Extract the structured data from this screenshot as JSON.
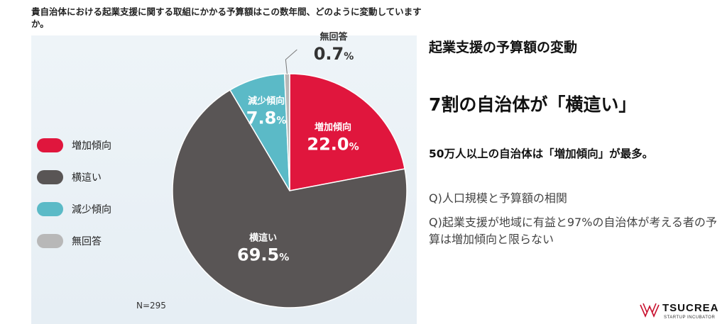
{
  "question": "貴自治体における起業支援に関する取組にかかる予算額はこの数年間、どのように変動していますか。",
  "sample_size": "N=295",
  "legend": [
    {
      "label": "増加傾向",
      "color": "#e0163d"
    },
    {
      "label": "横這い",
      "color": "#595555"
    },
    {
      "label": "減少傾向",
      "color": "#5bbac7"
    },
    {
      "label": "無回答",
      "color": "#b8b8b8"
    }
  ],
  "chart_data": {
    "type": "pie",
    "title": "",
    "slices": [
      {
        "label": "増加傾向",
        "value": 22.0,
        "value_label": "22.0",
        "color": "#e0163d"
      },
      {
        "label": "横這い",
        "value": 69.5,
        "value_label": "69.5",
        "color": "#595555"
      },
      {
        "label": "減少傾向",
        "value": 7.8,
        "value_label": "7.8",
        "color": "#5bbac7"
      },
      {
        "label": "無回答",
        "value": 0.7,
        "value_label": "0.7",
        "color": "#b8b8b8"
      }
    ],
    "unit": "%"
  },
  "right": {
    "title": "起業支援の予算額の変動",
    "headline": "7割の自治体が「横這い」",
    "subhead": "50万人以上の自治体は「増加傾向」が最多。",
    "q1": "Q)人口規模と予算額の相関",
    "q2": "Q)起業支援が地域に有益と97%の自治体が考える者の予算は増加傾向と限らない"
  },
  "logo": {
    "name": "TSUCREA",
    "tagline": "STARTUP INCUBATOR"
  }
}
